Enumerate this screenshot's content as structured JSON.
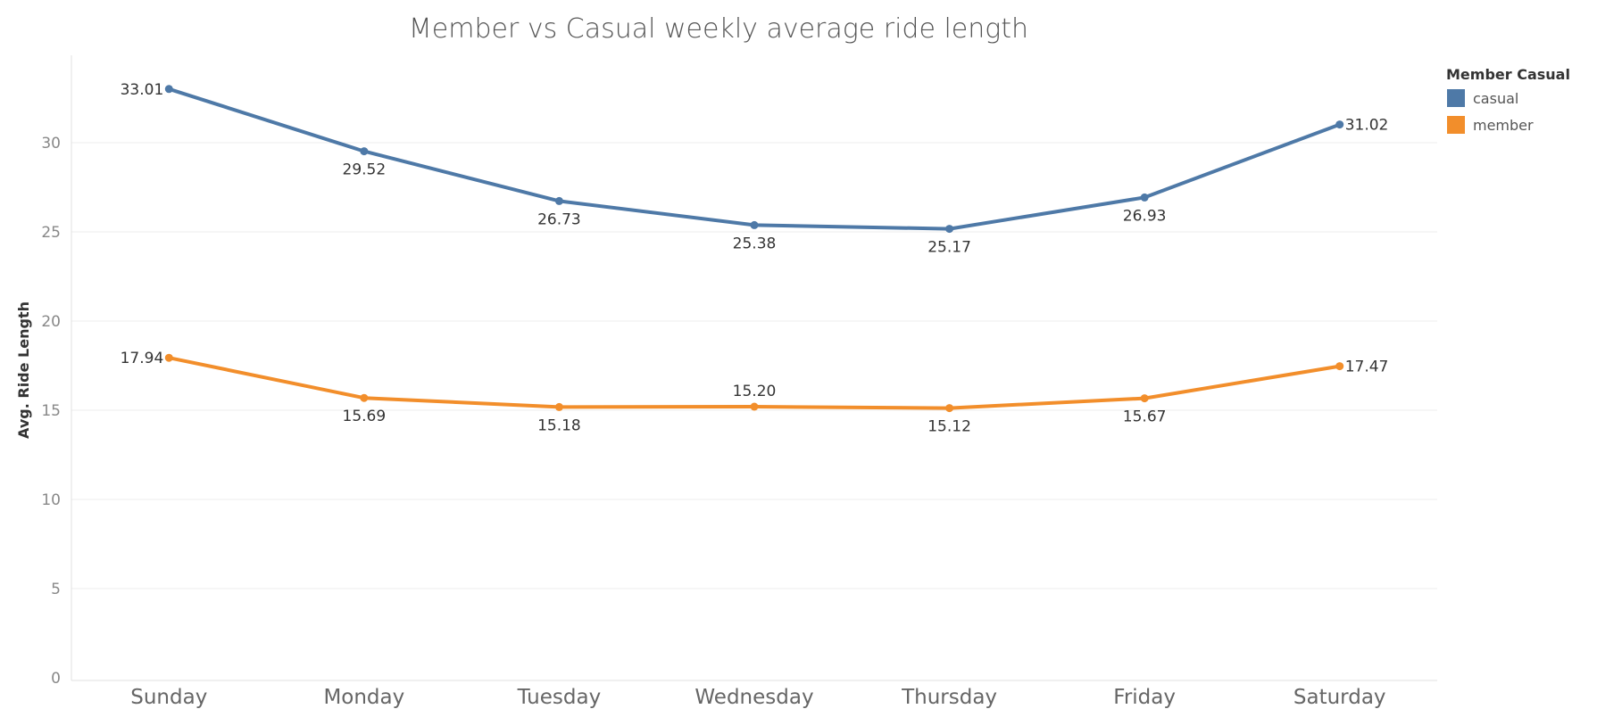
{
  "chart_data": {
    "type": "line",
    "title": "Member vs Casual weekly average ride length",
    "xlabel": "",
    "ylabel": "Avg. Ride Length",
    "categories": [
      "Sunday",
      "Monday",
      "Tuesday",
      "Wednesday",
      "Thursday",
      "Friday",
      "Saturday"
    ],
    "ylim": [
      0,
      35
    ],
    "yticks": [
      0,
      5,
      10,
      15,
      20,
      25,
      30
    ],
    "grid": true,
    "legend": {
      "title": "Member Casual",
      "placement": "top-right"
    },
    "series": [
      {
        "name": "casual",
        "color": "#4e79a7",
        "values": [
          33.01,
          29.52,
          26.73,
          25.38,
          25.17,
          26.93,
          31.02
        ],
        "labels": [
          "33.01",
          "29.52",
          "26.73",
          "25.38",
          "25.17",
          "26.93",
          "31.02"
        ]
      },
      {
        "name": "member",
        "color": "#f28e2b",
        "values": [
          17.94,
          15.69,
          15.18,
          15.2,
          15.12,
          15.67,
          17.47
        ],
        "labels": [
          "17.94",
          "15.69",
          "15.18",
          "15.20",
          "15.12",
          "15.67",
          "17.47"
        ]
      }
    ]
  }
}
